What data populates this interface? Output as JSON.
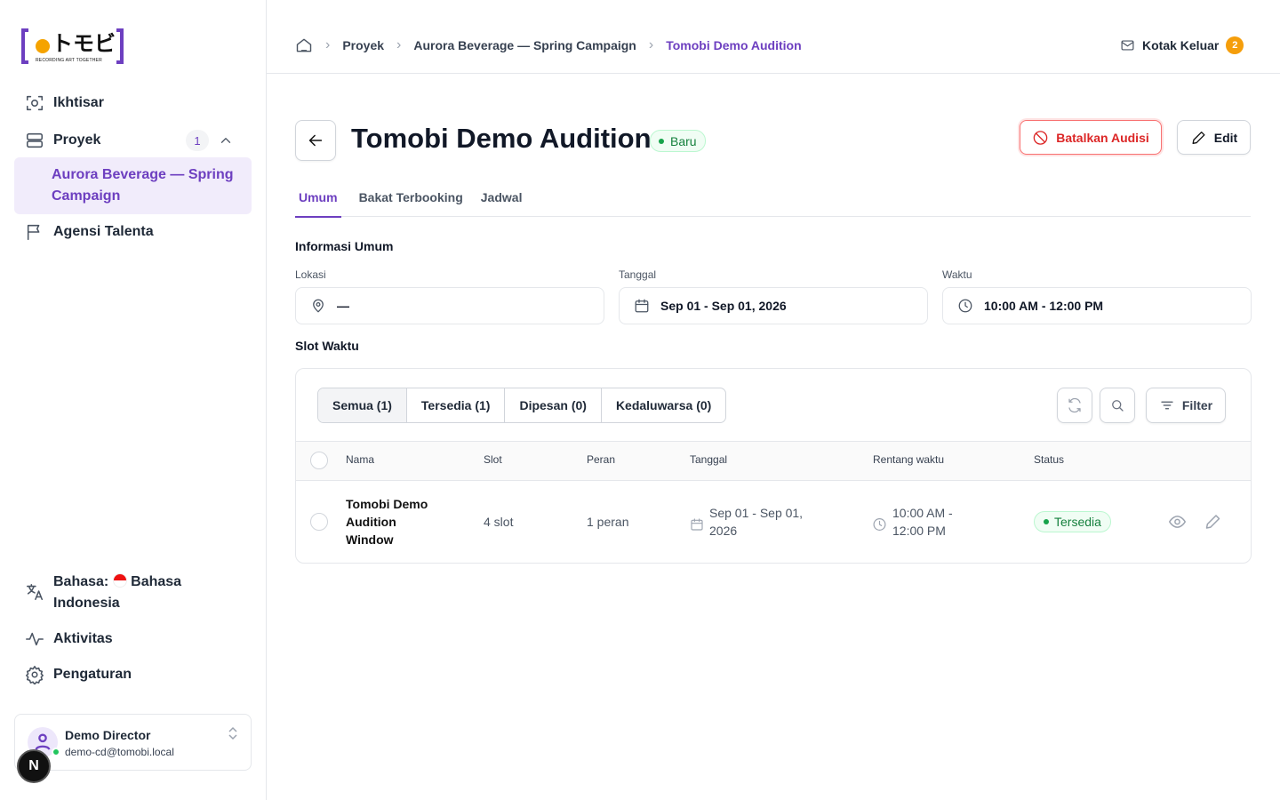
{
  "logo": {
    "mark": "トモビ",
    "tagline": "RECORDING ART TOGETHER"
  },
  "sidebar": {
    "nav": [
      "Ikhtisar",
      "Proyek",
      "Agensi Talenta"
    ],
    "proyek_count": 1,
    "active_project": "Aurora Beverage — Spring Campaign",
    "language_label": "Bahasa:",
    "language": "Bahasa Indonesia",
    "bottom": [
      "Aktivitas",
      "Pengaturan"
    ],
    "user": {
      "name": "Demo Director",
      "email": "demo-cd@tomobi.local"
    },
    "dev_badge": "N"
  },
  "breadcrumb": [
    "Proyek",
    "Aurora Beverage — Spring Campaign",
    "Tomobi Demo Audition"
  ],
  "outbox": {
    "label": "Kotak Keluar",
    "count": 2
  },
  "page": {
    "title": "Tomobi Demo Audition",
    "status": "Baru",
    "actions": [
      "Batalkan Audisi",
      "Edit"
    ],
    "tabs": [
      "Umum",
      "Bakat Terbooking",
      "Jadwal"
    ]
  },
  "general": {
    "heading": "Informasi Umum",
    "fields": [
      {
        "label": "Lokasi",
        "value": "—"
      },
      {
        "label": "Tanggal",
        "value": "Sep 01 - Sep 01, 2026"
      },
      {
        "label": "Waktu",
        "value": "10:00 AM - 12:00 PM"
      }
    ]
  },
  "slots": {
    "heading": "Slot Waktu",
    "filters": [
      "Semua (1)",
      "Tersedia (1)",
      "Dipesan (0)",
      "Kedaluwarsa (0)"
    ],
    "filter_button": "Filter",
    "columns": [
      "Nama",
      "Slot",
      "Peran",
      "Tanggal",
      "Rentang waktu",
      "Status"
    ],
    "rows": [
      [
        "Tomobi Demo Audition Window",
        "4 slot",
        "1 peran",
        "Sep 01 - Sep 01, 2026",
        "10:00 AM - 12:00 PM",
        "Tersedia"
      ]
    ]
  }
}
